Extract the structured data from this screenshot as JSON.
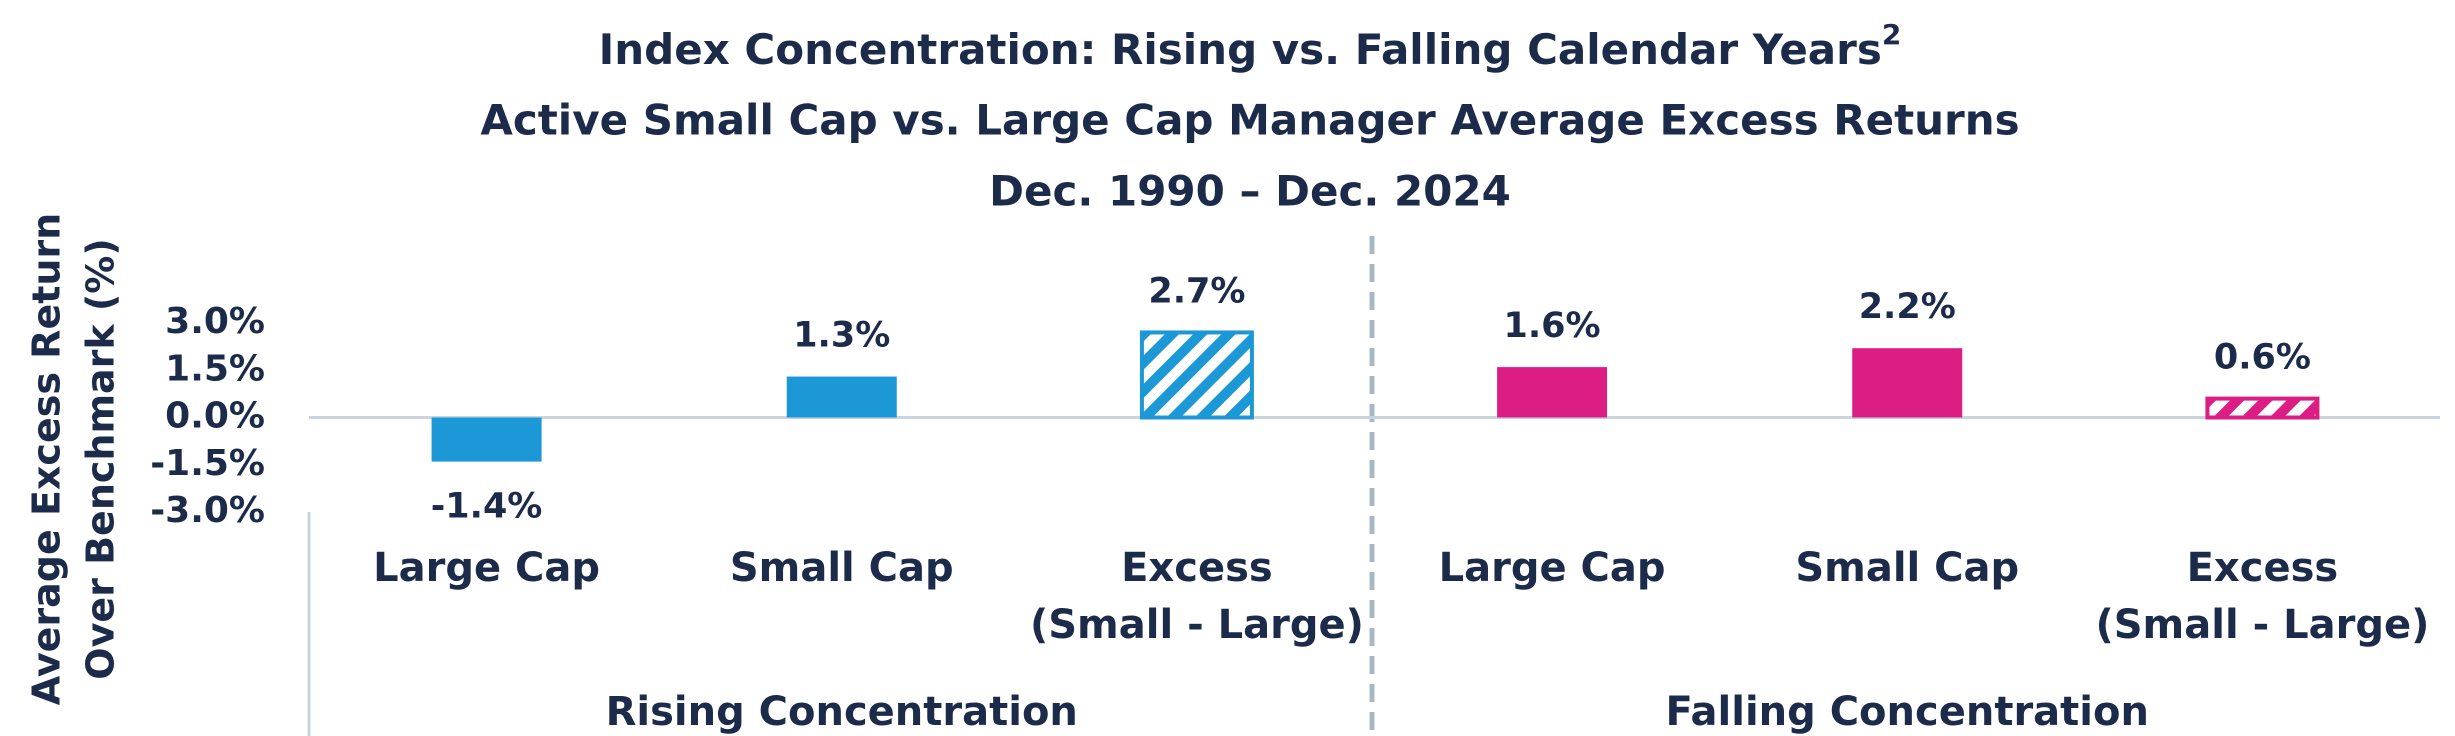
{
  "chart_data": {
    "type": "grouped-bar",
    "title": [
      "Index Concentration: Rising vs. Falling Calendar Years",
      "Active Small Cap vs. Large Cap Manager Average Excess Returns",
      "Dec. 1990 – Dec. 2024"
    ],
    "title_superscript": "2",
    "y_label": [
      "Average Excess Return",
      "Over Benchmark (%)"
    ],
    "ylim": [
      -3,
      3
    ],
    "yticks": [
      {
        "value": 3,
        "label": "3.0%"
      },
      {
        "value": 1.5,
        "label": "1.5%"
      },
      {
        "value": 0,
        "label": "0.0%"
      },
      {
        "value": -1.5,
        "label": "-1.5%"
      },
      {
        "value": -3,
        "label": "-3.0%"
      }
    ],
    "groups": [
      {
        "name": "Rising Concentration",
        "color": "#1b98d5",
        "categories": [
          [
            "Large Cap"
          ],
          [
            "Small Cap"
          ],
          [
            "Excess",
            "(Small - Large)"
          ]
        ],
        "values": [
          -1.4,
          1.3,
          2.7
        ],
        "value_labels": [
          "-1.4%",
          "1.3%",
          "2.7%"
        ],
        "hatched": [
          false,
          false,
          true
        ]
      },
      {
        "name": "Falling Concentration",
        "color": "#dc1e84",
        "categories": [
          [
            "Large Cap"
          ],
          [
            "Small Cap"
          ],
          [
            "Excess",
            "(Small - Large)"
          ]
        ],
        "values": [
          1.6,
          2.2,
          0.6
        ],
        "value_labels": [
          "1.6%",
          "2.2%",
          "0.6%"
        ],
        "hatched": [
          false,
          false,
          true
        ]
      }
    ]
  }
}
